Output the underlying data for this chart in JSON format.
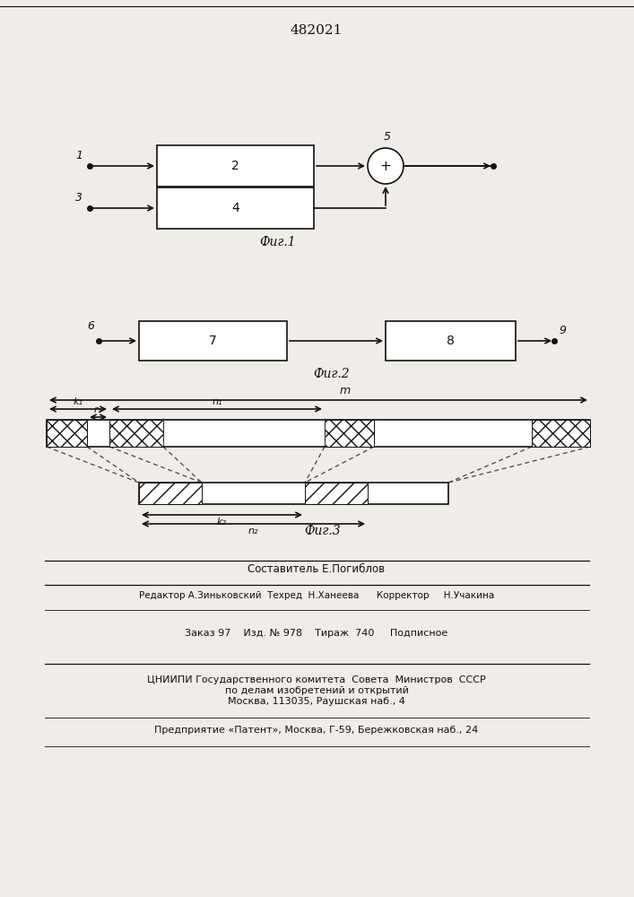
{
  "title": "482021",
  "fig1_caption": "Фиг.1",
  "fig2_caption": "Фиг.2",
  "fig3_caption": "Фиг.3",
  "footer_line1": "Составитель Е.Погиблов",
  "footer_line2": "Редактор А.Зиньковский  Техред  Н.Ханеева      Корректор     Н.Учакина",
  "footer_line3": "Заказ 97    Изд. № 978    Тираж  740     Подписное",
  "footer_line4": "ЦНИИПИ Государственного комитета  Совета  Министров  СССР",
  "footer_line5": "по делам изобретений и открытий",
  "footer_line6": "Москва, 113035, Раушская наб., 4",
  "footer_line7": "Предприятие «Патент», Москва, Г-59, Бережковская наб., 24",
  "bg_color": "#f0ede8"
}
